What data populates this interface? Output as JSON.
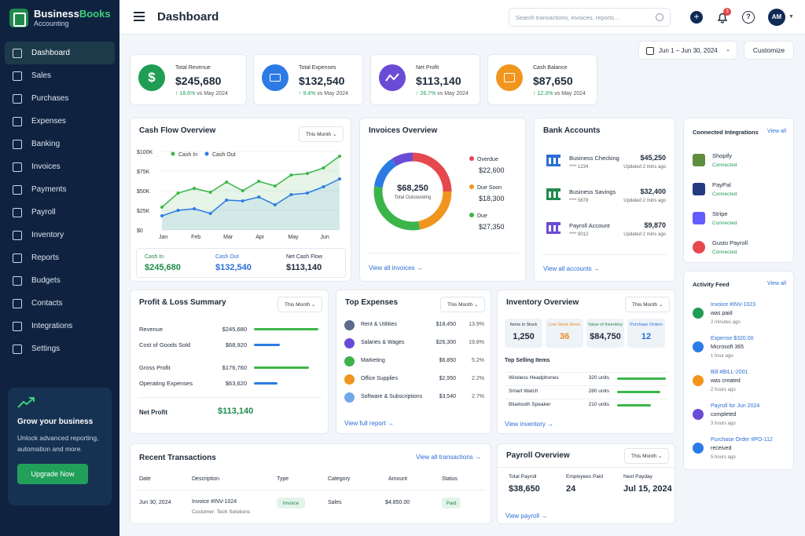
{
  "brand": {
    "name_a": "Business",
    "name_b": "Books",
    "sub": "Accounting"
  },
  "nav": [
    "Dashboard",
    "Sales",
    "Purchases",
    "Expenses",
    "Banking",
    "Invoices",
    "Payments",
    "Payroll",
    "Inventory",
    "Reports",
    "Budgets",
    "Contacts",
    "Integrations",
    "Settings"
  ],
  "promo": {
    "title": "Grow your business",
    "text": "Unlock advanced reporting, automation and more.",
    "button": "Upgrade Now"
  },
  "header": {
    "title": "Dashboard",
    "search_placeholder": "Search transactions, invoices, reports...",
    "notif_count": "3",
    "avatar": "AM"
  },
  "date_range": "Jun 1 – Jun 30, 2024",
  "customize": "Customize",
  "kpis": [
    {
      "label": "Total Revenue",
      "value": "$245,680",
      "change": "↑ 18.6%",
      "vs": "vs May 2024",
      "color": "#1f9d55"
    },
    {
      "label": "Total Expenses",
      "value": "$132,540",
      "change": "↑ 9.4%",
      "vs": "vs May 2024",
      "color": "#2c7be5"
    },
    {
      "label": "Net Profit",
      "value": "$113,140",
      "change": "↑ 26.7%",
      "vs": "vs May 2024",
      "color": "#6a4bd6"
    },
    {
      "label": "Cash Balance",
      "value": "$87,650",
      "change": "↑ 12.3%",
      "vs": "vs May 2024",
      "color": "#f0951e"
    }
  ],
  "cashflow": {
    "title": "Cash Flow Overview",
    "period": "This Month",
    "legend_in": "Cash In",
    "legend_out": "Cash Out",
    "yticks": [
      "$100K",
      "$75K",
      "$50K",
      "$25K",
      "$0"
    ],
    "months": [
      "Jan",
      "Feb",
      "Mar",
      "Apr",
      "May",
      "Jun"
    ],
    "sum": [
      {
        "label": "Cash In",
        "value": "$245,680"
      },
      {
        "label": "Cash Out",
        "value": "$132,540"
      },
      {
        "label": "Net Cash Flow",
        "value": "$113,140"
      }
    ]
  },
  "chart_data": {
    "type": "area",
    "x": [
      "Jan",
      "",
      "Feb",
      "",
      "Mar",
      "",
      "Apr",
      "",
      "May",
      "",
      "Jun",
      ""
    ],
    "ylim": [
      0,
      100000
    ],
    "series": [
      {
        "name": "Cash In",
        "values": [
          29000,
          47000,
          53000,
          48000,
          61000,
          50000,
          62000,
          56000,
          70000,
          72000,
          79000,
          94000
        ]
      },
      {
        "name": "Cash Out",
        "values": [
          18000,
          25000,
          27000,
          21000,
          38000,
          37000,
          42000,
          32000,
          45000,
          47000,
          55000,
          65000
        ]
      }
    ]
  },
  "invoices": {
    "title": "Invoices Overview",
    "total": "$68,250",
    "total_label": "Total Outstanding",
    "items": [
      {
        "label": "Overdue",
        "value": "$22,600",
        "color": "#e5484d"
      },
      {
        "label": "Due Soon",
        "value": "$18,300",
        "color": "#f0951e"
      },
      {
        "label": "Due",
        "value": "$27,350",
        "color": "#3bb54a"
      }
    ],
    "link": "View all invoices →",
    "ring_colors": [
      "#e5484d",
      "#f0951e",
      "#3bb54a",
      "#2c7be5",
      "#6a4bd6"
    ]
  },
  "bank": {
    "title": "Bank Accounts",
    "link": "View all accounts →",
    "accounts": [
      {
        "name": "Business Checking",
        "num": "**** 1234",
        "bal": "$45,250",
        "upd": "Updated 2 mins ago",
        "color": "#2c6ed5"
      },
      {
        "name": "Business Savings",
        "num": "**** 5678",
        "bal": "$32,400",
        "upd": "Updated 2 mins ago",
        "color": "#1f8a4c"
      },
      {
        "name": "Payroll Account",
        "num": "**** 9012",
        "bal": "$9,870",
        "upd": "Updated 2 mins ago",
        "color": "#6a4bd6"
      }
    ]
  },
  "integrations": {
    "title": "Connected Integrations",
    "link": "View all",
    "items": [
      {
        "name": "Shopify",
        "status": "Connected",
        "color": "#5e8e3e"
      },
      {
        "name": "PayPal",
        "status": "Connected",
        "color": "#253b80"
      },
      {
        "name": "Stripe",
        "status": "Connected",
        "color": "#635bff"
      },
      {
        "name": "Gusto Payroll",
        "status": "Connected",
        "color": "#e5484d"
      }
    ]
  },
  "activity": {
    "title": "Activity Feed",
    "link": "View all",
    "items": [
      {
        "title": "Invoice #INV-1023",
        "desc": "was paid",
        "time": "2 minutes ago",
        "color": "#1f9d55"
      },
      {
        "title": "Expense $320.00",
        "desc": "Microsoft 365",
        "time": "1 hour ago",
        "color": "#2c7be5"
      },
      {
        "title": "Bill #BILL-2001",
        "desc": "was created",
        "time": "2 hours ago",
        "color": "#f0951e"
      },
      {
        "title": "Payroll for Jun 2024",
        "desc": "completed",
        "time": "3 hours ago",
        "color": "#6a4bd6"
      },
      {
        "title": "Purchase Order #PO-112",
        "desc": "received",
        "time": "5 hours ago",
        "color": "#2c7be5"
      }
    ]
  },
  "pl": {
    "title": "Profit & Loss Summary",
    "period": "This Month",
    "rows": [
      {
        "label": "Revenue",
        "value": "$245,680",
        "color": "#3bb54a",
        "frac": 1.0
      },
      {
        "label": "Cost of Goods Sold",
        "value": "$68,920",
        "color": "#2c7be5",
        "frac": 0.4
      },
      {
        "label": "Gross Profit",
        "value": "$176,760",
        "color": "#3bb54a",
        "frac": 0.85
      },
      {
        "label": "Operating Expenses",
        "value": "$63,620",
        "color": "#2c7be5",
        "frac": 0.36
      }
    ],
    "net_label": "Net Profit",
    "net_value": "$113,140"
  },
  "expenses": {
    "title": "Top Expenses",
    "period": "This Month",
    "link": "View full report →",
    "items": [
      {
        "name": "Rent & Utilities",
        "amt": "$18,450",
        "pct": "13.9%",
        "color": "#5a6b8c"
      },
      {
        "name": "Salaries & Wages",
        "amt": "$26,300",
        "pct": "19.8%",
        "color": "#6a4bd6"
      },
      {
        "name": "Marketing",
        "amt": "$6,850",
        "pct": "5.2%",
        "color": "#3bb54a"
      },
      {
        "name": "Office Supplies",
        "amt": "$2,950",
        "pct": "2.2%",
        "color": "#f0951e"
      },
      {
        "name": "Software & Subscriptions",
        "amt": "$3,540",
        "pct": "2.7%",
        "color": "#6ea8e8"
      }
    ]
  },
  "inventory": {
    "title": "Inventory Overview",
    "period": "This Month",
    "stats": [
      {
        "label": "Items in Stock",
        "value": "1,250",
        "color": "#1e2a3a",
        "lc": "#333"
      },
      {
        "label": "Low Stock Items",
        "value": "36",
        "color": "#e88a1a",
        "lc": "#e88a1a"
      },
      {
        "label": "Value of Inventory",
        "value": "$84,750",
        "color": "#1e2a3a",
        "lc": "#1f8a4c"
      },
      {
        "label": "Purchase Orders",
        "value": "12",
        "color": "#2c6ed5",
        "lc": "#2c6ed5"
      }
    ],
    "top_title": "Top Selling Items",
    "items": [
      {
        "name": "Wireless Headphones",
        "units": "320 units",
        "frac": 1.0
      },
      {
        "name": "Smart Watch",
        "units": "280 units",
        "frac": 0.88
      },
      {
        "name": "Bluetooth Speaker",
        "units": "210 units",
        "frac": 0.7
      }
    ],
    "link": "View inventory →"
  },
  "transactions": {
    "title": "Recent Transactions",
    "link": "View all transactions →",
    "headers": [
      "Date",
      "Description",
      "Type",
      "Category",
      "Amount",
      "Status"
    ],
    "row": {
      "date": "Jun 30, 2024",
      "desc": "Invoice #INV-1024",
      "sub": "Customer: Tech Solutions",
      "type": "Invoice",
      "cat": "Sales",
      "amt": "$4,850.00",
      "status": "Paid"
    }
  },
  "payroll": {
    "title": "Payroll Overview",
    "period": "This Month",
    "stats": [
      {
        "label": "Total Payroll",
        "value": "$38,650"
      },
      {
        "label": "Employees Paid",
        "value": "24"
      },
      {
        "label": "Next Payday",
        "value": "Jul 15, 2024"
      }
    ],
    "link": "View payroll →"
  }
}
